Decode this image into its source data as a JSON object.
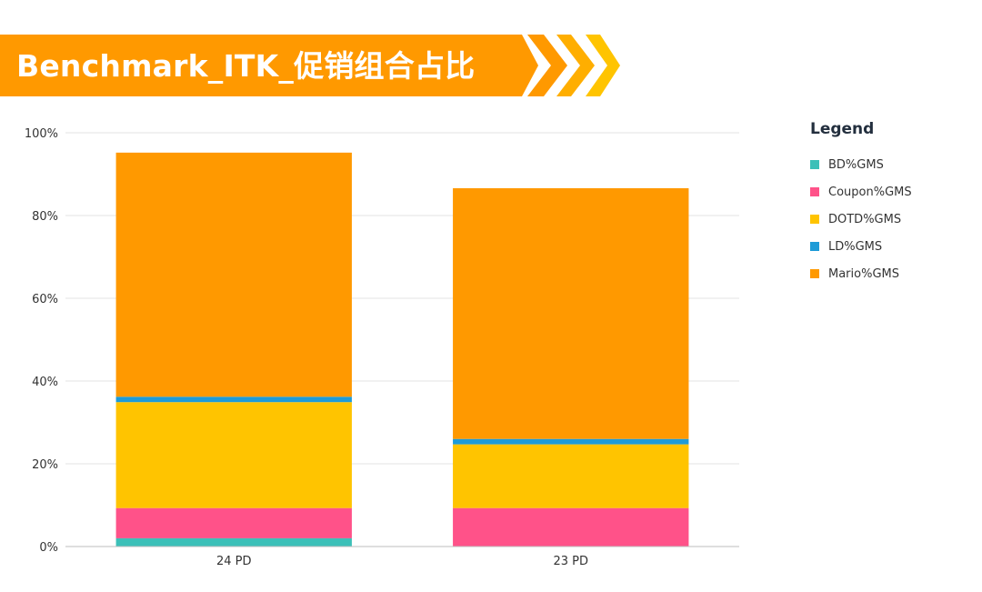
{
  "title": "Benchmark_ITK_促销组合占比",
  "colors": {
    "banner_orange": "#FF9900",
    "chevron_1": "#FF9900",
    "chevron_2": "#FFAE00",
    "chevron_3": "#FFC400"
  },
  "legend": {
    "title": "Legend",
    "items": [
      {
        "label": "BD%GMS",
        "color": "#3CC0B8"
      },
      {
        "label": "Coupon%GMS",
        "color": "#FF5289"
      },
      {
        "label": "DOTD%GMS",
        "color": "#FFC400"
      },
      {
        "label": "LD%GMS",
        "color": "#1E9BD7"
      },
      {
        "label": "Mario%GMS",
        "color": "#FF9900"
      }
    ]
  },
  "chart_data": {
    "type": "bar",
    "stacked": true,
    "categories": [
      "24 PD",
      "23 PD"
    ],
    "series": [
      {
        "name": "BD%GMS",
        "color": "#3CC0B8",
        "values": [
          2.0,
          0.0
        ]
      },
      {
        "name": "Coupon%GMS",
        "color": "#FF5289",
        "values": [
          7.3,
          9.3
        ]
      },
      {
        "name": "DOTD%GMS",
        "color": "#FFC400",
        "values": [
          25.6,
          15.4
        ]
      },
      {
        "name": "LD%GMS",
        "color": "#1E9BD7",
        "values": [
          1.3,
          1.3
        ]
      },
      {
        "name": "Mario%GMS",
        "color": "#FF9900",
        "values": [
          59.0,
          60.6
        ]
      }
    ],
    "ylim": [
      0,
      100
    ],
    "yticks": [
      "0%",
      "20%",
      "40%",
      "60%",
      "80%",
      "100%"
    ],
    "ytick_values": [
      0,
      20,
      40,
      60,
      80,
      100
    ],
    "grid": true,
    "legend_position": "right"
  }
}
